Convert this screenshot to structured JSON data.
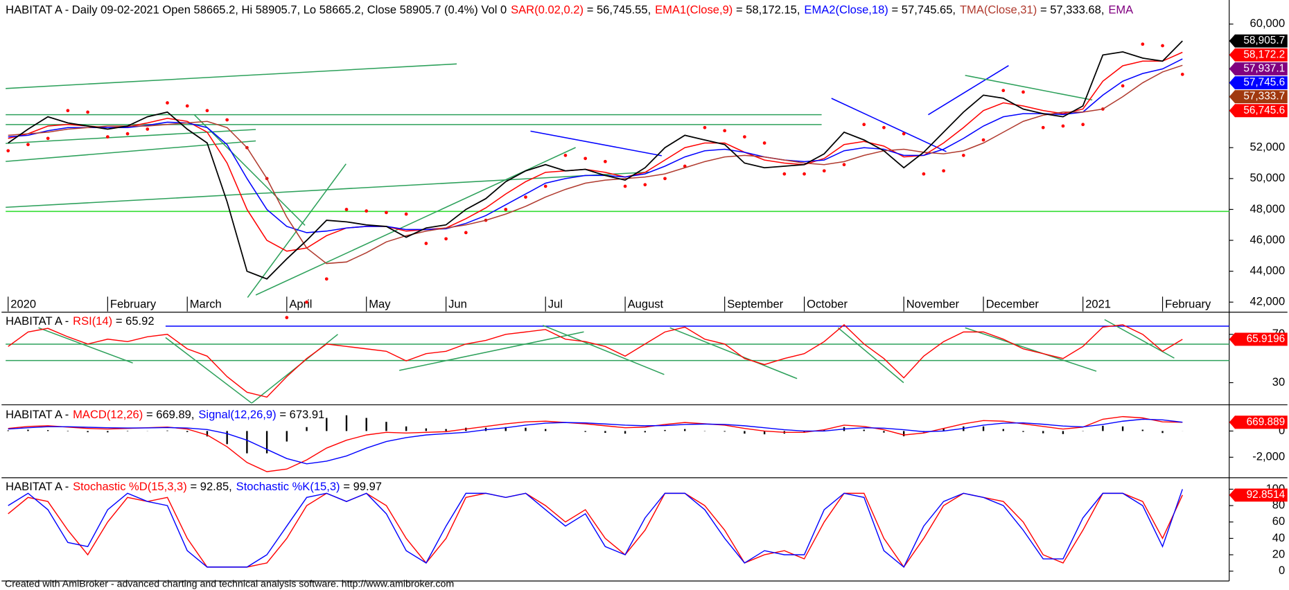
{
  "chart_data": [
    {
      "type": "line",
      "label": "HABITAT A - Daily 09-02-2021 Open 58665.2, Hi 58905.7, Lo 58665.2, Close 58905.7 (0.4%) Vol 0",
      "categories": [
        "2020",
        null,
        null,
        null,
        null,
        "February",
        null,
        null,
        null,
        "March",
        null,
        null,
        null,
        null,
        "April",
        null,
        null,
        null,
        "May",
        null,
        null,
        null,
        "Jun",
        null,
        null,
        null,
        null,
        "Jul",
        null,
        null,
        null,
        "August",
        null,
        null,
        null,
        null,
        "September",
        null,
        null,
        null,
        "October",
        null,
        null,
        null,
        null,
        "November",
        null,
        null,
        null,
        "December",
        null,
        null,
        null,
        null,
        "2021",
        null,
        null,
        null,
        "February",
        null
      ],
      "values": [
        52300,
        53200,
        54000,
        53600,
        53400,
        53200,
        53400,
        54000,
        54300,
        53200,
        52300,
        48500,
        44000,
        43500,
        44800,
        46000,
        47300,
        47200,
        47000,
        46900,
        46200,
        46800,
        47000,
        48000,
        48700,
        49800,
        50500,
        50900,
        50500,
        50600,
        50200,
        49900,
        50700,
        52000,
        52800,
        52500,
        52200,
        51000,
        50700,
        50800,
        50900,
        51600,
        53000,
        52500,
        51800,
        50700,
        51700,
        53000,
        54300,
        55400,
        55200,
        54500,
        54200,
        54000,
        54700,
        58000,
        58200,
        57800,
        57600,
        58905.7
      ],
      "color": "#000000",
      "series": [
        {
          "name": "SAR(0.02,0.2)",
          "legend_value": "= 56,745.55,",
          "color": "#ff0000",
          "style": "dots",
          "values": [
            51800,
            52200,
            52600,
            54400,
            54300,
            52700,
            52900,
            53200,
            54900,
            54700,
            54400,
            53800,
            52000,
            50000,
            41000,
            42000,
            43500,
            48000,
            47900,
            47800,
            47700,
            45800,
            46100,
            46500,
            47300,
            48000,
            48800,
            49500,
            51500,
            51300,
            51100,
            49500,
            49600,
            50000,
            50800,
            53300,
            53100,
            52700,
            52300,
            50300,
            50300,
            50500,
            50900,
            53500,
            53300,
            52900,
            50300,
            50500,
            51500,
            52500,
            55700,
            55600,
            53300,
            53400,
            53500,
            54500,
            56000,
            58700,
            58600,
            56745.55
          ]
        },
        {
          "name": "EMA1(Close,9)",
          "legend_value": "= 58,172.15,",
          "color": "#ff0000",
          "style": "line",
          "values": [
            52600,
            52900,
            53400,
            53500,
            53400,
            53300,
            53350,
            53600,
            53900,
            53700,
            53000,
            51000,
            48000,
            46000,
            45300,
            45500,
            46300,
            46800,
            46900,
            46900,
            46600,
            46700,
            46800,
            47400,
            48100,
            49000,
            49800,
            50400,
            50500,
            50600,
            50400,
            50100,
            50400,
            51200,
            52000,
            52300,
            52300,
            51700,
            51200,
            51000,
            50900,
            51300,
            52200,
            52400,
            52100,
            51400,
            51500,
            52300,
            53300,
            54400,
            54900,
            54700,
            54400,
            54200,
            54500,
            56300,
            57300,
            57600,
            57600,
            58172.15
          ]
        },
        {
          "name": "EMA2(Close,18)",
          "legend_value": "= 57,745.65,",
          "color": "#0000ff",
          "style": "line",
          "values": [
            52700,
            52800,
            53100,
            53300,
            53300,
            53300,
            53300,
            53450,
            53650,
            53600,
            53300,
            52200,
            50000,
            48000,
            46900,
            46500,
            46600,
            46800,
            46900,
            46900,
            46700,
            46700,
            46750,
            47100,
            47600,
            48300,
            49000,
            49700,
            50000,
            50200,
            50200,
            50100,
            50300,
            50800,
            51400,
            51800,
            51900,
            51700,
            51400,
            51200,
            51100,
            51200,
            51800,
            52000,
            51900,
            51500,
            51500,
            51900,
            52600,
            53400,
            54000,
            54200,
            54200,
            54150,
            54300,
            55400,
            56300,
            56800,
            57100,
            57745.65
          ]
        },
        {
          "name": "TMA(Close,31)",
          "legend_value": "= 57,333.68,",
          "color": "#b03a2e",
          "style": "line",
          "values": [
            52800,
            52900,
            53000,
            53200,
            53300,
            53400,
            53400,
            53400,
            53500,
            53600,
            53700,
            53300,
            52000,
            50000,
            47500,
            45500,
            44500,
            44600,
            45200,
            45900,
            46300,
            46600,
            46800,
            47000,
            47300,
            47700,
            48200,
            48800,
            49300,
            49700,
            49900,
            50000,
            50100,
            50300,
            50700,
            51100,
            51400,
            51500,
            51400,
            51200,
            51000,
            50900,
            51100,
            51500,
            51800,
            51900,
            51700,
            51600,
            51800,
            52300,
            53000,
            53700,
            54100,
            54300,
            54300,
            54500,
            55300,
            56200,
            56900,
            57333.68
          ]
        }
      ],
      "legend_extra": {
        "text": "EMA",
        "color": "#800080"
      },
      "ylim": [
        41400,
        61400
      ],
      "yticks": [
        {
          "value": 42000,
          "label": "42,000"
        },
        {
          "value": 44000,
          "label": "44,000"
        },
        {
          "value": 46000,
          "label": "46,000"
        },
        {
          "value": 48000,
          "label": "48,000"
        },
        {
          "value": 50000,
          "label": "50,000"
        },
        {
          "value": 52000,
          "label": "52,000"
        },
        {
          "value": 60000,
          "label": "60,000"
        }
      ],
      "badges": [
        {
          "value": 58905.7,
          "label": "58,905.7",
          "color": "#000000"
        },
        {
          "value": 58172.15,
          "label": "58,172.2",
          "color": "#ff0000"
        },
        {
          "value": 57937.1,
          "label": "57,937.1",
          "color": "#800080"
        },
        {
          "value": 57745.65,
          "label": "57,745.6",
          "color": "#0000ff"
        },
        {
          "value": 57333.68,
          "label": "57,333.7",
          "color": "#a0390f"
        },
        {
          "value": 56745.55,
          "label": "56,745.6",
          "color": "#ff0000"
        }
      ]
    },
    {
      "type": "line",
      "label": "HABITAT A -",
      "series": [
        {
          "name": "RSI(14)",
          "legend_value": "= 65.92",
          "color": "#ff0000",
          "style": "line",
          "values": [
            60,
            72,
            75,
            68,
            62,
            66,
            64,
            68,
            70,
            58,
            52,
            35,
            22,
            18,
            35,
            50,
            62,
            60,
            58,
            56,
            48,
            54,
            56,
            62,
            65,
            70,
            72,
            74,
            66,
            64,
            60,
            52,
            62,
            72,
            76,
            66,
            62,
            50,
            45,
            50,
            54,
            64,
            78,
            62,
            50,
            34,
            52,
            64,
            72,
            72,
            66,
            58,
            54,
            50,
            60,
            76,
            78,
            70,
            56,
            65.92
          ]
        }
      ],
      "ylim": [
        13,
        87
      ],
      "yticks": [
        30,
        70
      ],
      "badges": [
        {
          "value": 65.9196,
          "label": "65.9196",
          "color": "#ff0000"
        }
      ]
    },
    {
      "type": "line",
      "label": "HABITAT A -",
      "histogram": true,
      "series": [
        {
          "name": "MACD(12,26)",
          "legend_value": "= 669.89,",
          "color": "#ff0000",
          "style": "line",
          "values": [
            200,
            350,
            400,
            300,
            200,
            150,
            200,
            250,
            300,
            150,
            -300,
            -1200,
            -2400,
            -3100,
            -2900,
            -2200,
            -1300,
            -700,
            -300,
            -100,
            -150,
            -100,
            -50,
            150,
            350,
            550,
            700,
            750,
            650,
            550,
            400,
            250,
            300,
            500,
            650,
            550,
            450,
            200,
            0,
            -100,
            -100,
            100,
            450,
            350,
            100,
            -300,
            -150,
            200,
            550,
            800,
            750,
            550,
            350,
            150,
            300,
            900,
            1100,
            1000,
            700,
            669.89
          ]
        },
        {
          "name": "Signal(12,26,9)",
          "legend_value": "= 673.91",
          "color": "#0000ff",
          "style": "line",
          "values": [
            150,
            250,
            330,
            330,
            290,
            250,
            230,
            240,
            260,
            230,
            110,
            -200,
            -700,
            -1400,
            -2100,
            -2500,
            -2300,
            -1900,
            -1300,
            -800,
            -500,
            -300,
            -200,
            -100,
            100,
            250,
            450,
            600,
            650,
            620,
            540,
            450,
            400,
            420,
            500,
            530,
            500,
            400,
            250,
            100,
            0,
            0,
            150,
            250,
            220,
            100,
            -50,
            0,
            200,
            450,
            600,
            620,
            520,
            380,
            320,
            500,
            750,
            900,
            850,
            673.91
          ]
        }
      ],
      "ylim": [
        -3375,
        1812
      ],
      "yticks": [
        {
          "value": -2000,
          "label": "-2,000"
        },
        0
      ],
      "badges": [
        {
          "value": 669.889,
          "label": "669.889",
          "color": "#ff0000"
        }
      ]
    },
    {
      "type": "line",
      "label": "HABITAT A -",
      "series": [
        {
          "name": "Stochastic %D(15,3,3)",
          "legend_value": "= 92.85,",
          "color": "#ff0000",
          "style": "line",
          "values": [
            70,
            90,
            85,
            50,
            20,
            60,
            90,
            85,
            90,
            40,
            5,
            5,
            5,
            10,
            40,
            80,
            95,
            85,
            95,
            80,
            40,
            10,
            40,
            90,
            95,
            90,
            95,
            80,
            60,
            75,
            40,
            20,
            50,
            95,
            95,
            80,
            50,
            10,
            20,
            25,
            15,
            60,
            95,
            95,
            40,
            5,
            40,
            80,
            95,
            90,
            85,
            60,
            20,
            10,
            50,
            95,
            95,
            85,
            40,
            92.85
          ]
        },
        {
          "name": "Stochastic %K(15,3)",
          "legend_value": "= 99.97",
          "color": "#0000ff",
          "style": "line",
          "values": [
            80,
            95,
            75,
            35,
            30,
            75,
            95,
            85,
            80,
            25,
            5,
            5,
            5,
            20,
            55,
            90,
            95,
            85,
            95,
            70,
            25,
            10,
            55,
            95,
            95,
            90,
            95,
            75,
            55,
            70,
            30,
            20,
            65,
            95,
            95,
            75,
            40,
            10,
            25,
            20,
            20,
            75,
            95,
            90,
            25,
            5,
            55,
            85,
            95,
            90,
            80,
            50,
            15,
            15,
            65,
            95,
            95,
            80,
            30,
            99.97
          ]
        }
      ],
      "ylim": [
        -11,
        112
      ],
      "yticks": [
        0,
        20,
        40,
        60,
        80,
        100
      ],
      "badges": [
        {
          "value": 92.8514,
          "label": "92.8514",
          "color": "#ff0000"
        }
      ]
    }
  ],
  "footer": "Created with AmiBroker - advanced charting and technical analysis software. http://www.amibroker.com"
}
